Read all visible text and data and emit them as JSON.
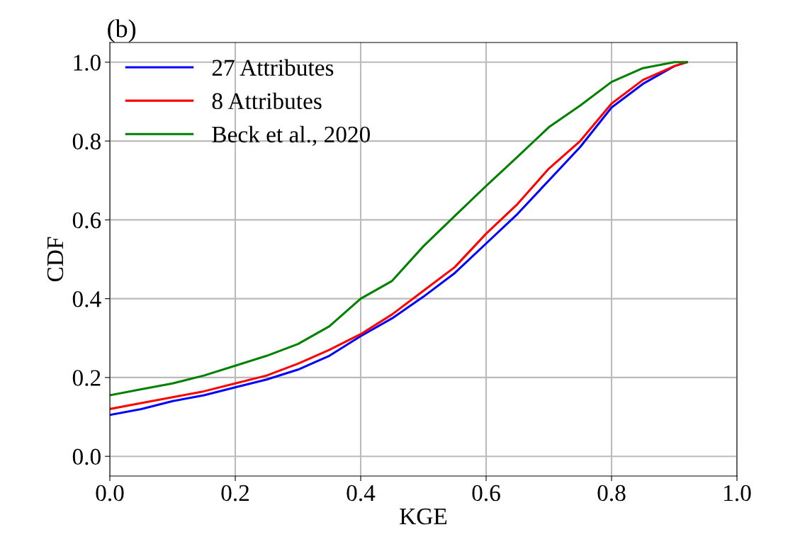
{
  "chart_data": {
    "type": "line",
    "title": "(b)",
    "xlabel": "KGE",
    "ylabel": "CDF",
    "xlim": [
      0,
      1
    ],
    "xticks": [
      {
        "value": 0,
        "label": "0.0"
      },
      {
        "value": 0.2,
        "label": "0.2"
      },
      {
        "value": 0.4,
        "label": "0.4"
      },
      {
        "value": 0.6,
        "label": "0.6"
      },
      {
        "value": 0.8,
        "label": "0.8"
      },
      {
        "value": 1,
        "label": "1.0"
      }
    ],
    "ylim": [
      -0.05,
      1.05
    ],
    "yticks": [
      {
        "value": 0,
        "label": "0.0"
      },
      {
        "value": 0.2,
        "label": "0.2"
      },
      {
        "value": 0.4,
        "label": "0.4"
      },
      {
        "value": 0.6,
        "label": "0.6"
      },
      {
        "value": 0.8,
        "label": "0.8"
      },
      {
        "value": 1,
        "label": "1.0"
      }
    ],
    "grid": true,
    "legend": "top left",
    "line_style": "solid",
    "marker": "none",
    "series": [
      {
        "name": "27 Attributes",
        "color": "#0000ff",
        "x": [
          0,
          0.05,
          0.1,
          0.15,
          0.2,
          0.25,
          0.3,
          0.35,
          0.4,
          0.45,
          0.5,
          0.55,
          0.6,
          0.65,
          0.7,
          0.75,
          0.8,
          0.85,
          0.9,
          0.92
        ],
        "values": [
          0.105,
          0.12,
          0.14,
          0.155,
          0.175,
          0.195,
          0.22,
          0.255,
          0.305,
          0.35,
          0.405,
          0.465,
          0.54,
          0.615,
          0.7,
          0.785,
          0.885,
          0.945,
          0.99,
          1.0
        ]
      },
      {
        "name": "8 Attributes",
        "color": "#ff0000",
        "x": [
          0,
          0.05,
          0.1,
          0.15,
          0.2,
          0.25,
          0.3,
          0.35,
          0.4,
          0.45,
          0.5,
          0.55,
          0.6,
          0.65,
          0.7,
          0.75,
          0.8,
          0.85,
          0.9,
          0.92
        ],
        "values": [
          0.12,
          0.135,
          0.15,
          0.165,
          0.185,
          0.205,
          0.235,
          0.27,
          0.31,
          0.36,
          0.42,
          0.48,
          0.565,
          0.64,
          0.73,
          0.8,
          0.895,
          0.955,
          0.99,
          1.0
        ]
      },
      {
        "name": "Beck et al., 2020",
        "color": "#008000",
        "x": [
          0,
          0.05,
          0.1,
          0.15,
          0.2,
          0.25,
          0.3,
          0.35,
          0.4,
          0.45,
          0.5,
          0.55,
          0.6,
          0.65,
          0.7,
          0.75,
          0.8,
          0.85,
          0.9,
          0.92
        ],
        "values": [
          0.155,
          0.17,
          0.185,
          0.205,
          0.23,
          0.255,
          0.285,
          0.33,
          0.4,
          0.445,
          0.533,
          0.61,
          0.686,
          0.76,
          0.835,
          0.89,
          0.95,
          0.985,
          1.0,
          1.0
        ]
      }
    ]
  }
}
